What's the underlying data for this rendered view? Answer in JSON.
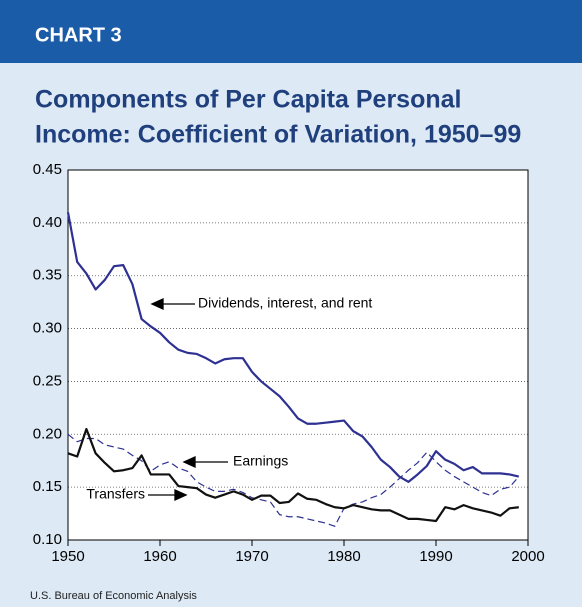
{
  "chart_data": {
    "type": "line",
    "header": "CHART 3",
    "title": [
      "Components of Per Capita Personal",
      "Income: Coefficient of Variation, 1950–99"
    ],
    "source": "U.S. Bureau of Economic Analysis",
    "x": [
      1950,
      1951,
      1952,
      1953,
      1954,
      1955,
      1956,
      1957,
      1958,
      1959,
      1960,
      1961,
      1962,
      1963,
      1964,
      1965,
      1966,
      1967,
      1968,
      1969,
      1970,
      1971,
      1972,
      1973,
      1974,
      1975,
      1976,
      1977,
      1978,
      1979,
      1980,
      1981,
      1982,
      1983,
      1984,
      1985,
      1986,
      1987,
      1988,
      1989,
      1990,
      1991,
      1992,
      1993,
      1994,
      1995,
      1996,
      1997,
      1998,
      1999
    ],
    "series": [
      {
        "name": "Dividends, interest, and rent",
        "color": "#2e3192",
        "style": "solid",
        "values": [
          0.41,
          0.363,
          0.352,
          0.337,
          0.346,
          0.359,
          0.36,
          0.342,
          0.309,
          0.302,
          0.296,
          0.287,
          0.28,
          0.277,
          0.276,
          0.272,
          0.267,
          0.271,
          0.272,
          0.272,
          0.259,
          0.25,
          0.243,
          0.236,
          0.226,
          0.215,
          0.21,
          0.21,
          0.211,
          0.212,
          0.213,
          0.203,
          0.198,
          0.188,
          0.176,
          0.169,
          0.16,
          0.155,
          0.162,
          0.17,
          0.184,
          0.176,
          0.172,
          0.166,
          0.169,
          0.163,
          0.163,
          0.163,
          0.162,
          0.16
        ]
      },
      {
        "name": "Earnings",
        "color": "#2e3192",
        "style": "dashed",
        "values": [
          0.2,
          0.193,
          0.196,
          0.196,
          0.19,
          0.188,
          0.186,
          0.18,
          0.175,
          0.165,
          0.171,
          0.174,
          0.168,
          0.165,
          0.155,
          0.15,
          0.146,
          0.146,
          0.148,
          0.145,
          0.14,
          0.138,
          0.136,
          0.124,
          0.122,
          0.122,
          0.12,
          0.118,
          0.116,
          0.113,
          0.13,
          0.134,
          0.136,
          0.14,
          0.143,
          0.15,
          0.158,
          0.166,
          0.173,
          0.183,
          0.174,
          0.166,
          0.16,
          0.155,
          0.15,
          0.145,
          0.142,
          0.148,
          0.15,
          0.16
        ]
      },
      {
        "name": "Transfers",
        "color": "#111111",
        "style": "solid",
        "values": [
          0.182,
          0.179,
          0.205,
          0.182,
          0.173,
          0.165,
          0.166,
          0.168,
          0.18,
          0.162,
          0.162,
          0.162,
          0.151,
          0.15,
          0.149,
          0.143,
          0.14,
          0.143,
          0.146,
          0.143,
          0.138,
          0.142,
          0.142,
          0.135,
          0.136,
          0.144,
          0.139,
          0.138,
          0.134,
          0.131,
          0.13,
          0.133,
          0.131,
          0.129,
          0.128,
          0.128,
          0.124,
          0.12,
          0.12,
          0.119,
          0.118,
          0.131,
          0.129,
          0.133,
          0.13,
          0.128,
          0.126,
          0.123,
          0.13,
          0.131
        ]
      }
    ],
    "xlim": [
      1950,
      2000
    ],
    "xticks": [
      1950,
      1960,
      1970,
      1980,
      1990,
      2000
    ],
    "ylim": [
      0.1,
      0.45
    ],
    "yticks": [
      {
        "value": 0.1,
        "label": "0.10"
      },
      0.15,
      {
        "value": 0.2,
        "label": "0.20"
      },
      0.25,
      {
        "value": 0.3,
        "label": "0.30"
      },
      0.35,
      {
        "value": 0.4,
        "label": "0.40"
      },
      0.45
    ],
    "grid": true
  }
}
